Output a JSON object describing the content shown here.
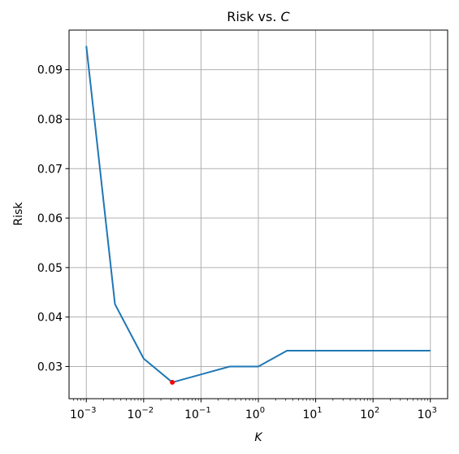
{
  "chart_data": {
    "type": "line",
    "title_main": "Risk vs. ",
    "title_var": "C",
    "xlabel": "K",
    "ylabel": "Risk",
    "x_scale": "log",
    "xlim": [
      0.0005,
      2000
    ],
    "ylim": [
      0.0235,
      0.098
    ],
    "grid": true,
    "x_ticks": [
      {
        "value": 0.001,
        "base": "10",
        "exp": "−3"
      },
      {
        "value": 0.01,
        "base": "10",
        "exp": "−2"
      },
      {
        "value": 0.1,
        "base": "10",
        "exp": "−1"
      },
      {
        "value": 1,
        "base": "10",
        "exp": "0"
      },
      {
        "value": 10,
        "base": "10",
        "exp": "1"
      },
      {
        "value": 100,
        "base": "10",
        "exp": "2"
      },
      {
        "value": 1000,
        "base": "10",
        "exp": "3"
      }
    ],
    "y_ticks": [
      {
        "value": 0.03,
        "label": "0.03"
      },
      {
        "value": 0.04,
        "label": "0.04"
      },
      {
        "value": 0.05,
        "label": "0.05"
      },
      {
        "value": 0.06,
        "label": "0.06"
      },
      {
        "value": 0.07,
        "label": "0.07"
      },
      {
        "value": 0.08,
        "label": "0.08"
      },
      {
        "value": 0.09,
        "label": "0.09"
      }
    ],
    "series": [
      {
        "x": [
          0.001,
          0.00316,
          0.01,
          0.0316,
          0.316,
          1,
          3.16,
          1000
        ],
        "y": [
          0.0948,
          0.0426,
          0.0316,
          0.0268,
          0.03,
          0.03,
          0.0332,
          0.0332
        ],
        "color": "#1f77b4"
      }
    ],
    "highlight_point": {
      "x": 0.0316,
      "y": 0.0268,
      "color": "#ff0000"
    }
  }
}
